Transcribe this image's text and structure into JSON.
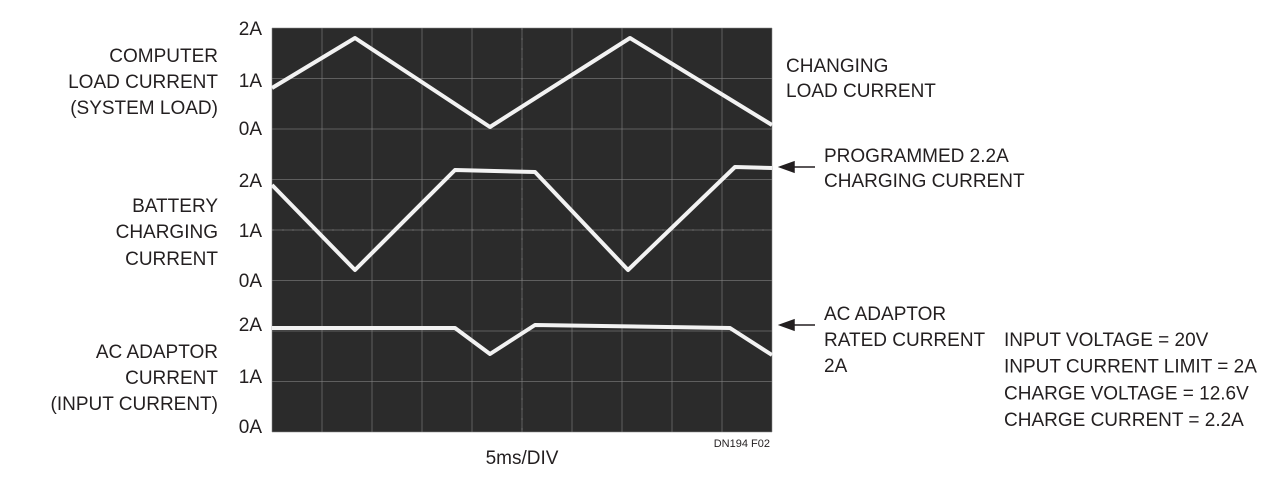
{
  "traces": [
    {
      "label_lines": [
        "COMPUTER",
        "LOAD CURRENT",
        "(SYSTEM LOAD)"
      ],
      "scale": [
        "2A",
        "1A",
        "0A"
      ]
    },
    {
      "label_lines": [
        "BATTERY",
        "CHARGING",
        "CURRENT"
      ],
      "scale": [
        "2A",
        "1A",
        "0A"
      ]
    },
    {
      "label_lines": [
        "AC ADAPTOR",
        "CURRENT",
        "(INPUT CURRENT)"
      ],
      "scale": [
        "2A",
        "1A",
        "0A"
      ]
    }
  ],
  "annotations": [
    {
      "lines": [
        "CHANGING",
        "LOAD CURRENT"
      ]
    },
    {
      "lines": [
        "PROGRAMMED 2.2A",
        "CHARGING CURRENT"
      ]
    },
    {
      "lines": [
        "AC ADAPTOR",
        "RATED CURRENT",
        "2A"
      ]
    }
  ],
  "x_label": "5ms/DIV",
  "figure_code": "DN194 F02",
  "conditions": [
    "INPUT VOLTAGE = 20V",
    "INPUT CURRENT LIMIT = 2A",
    "CHARGE VOLTAGE = 12.6V",
    "CHARGE CURRENT = 2.2A"
  ]
}
